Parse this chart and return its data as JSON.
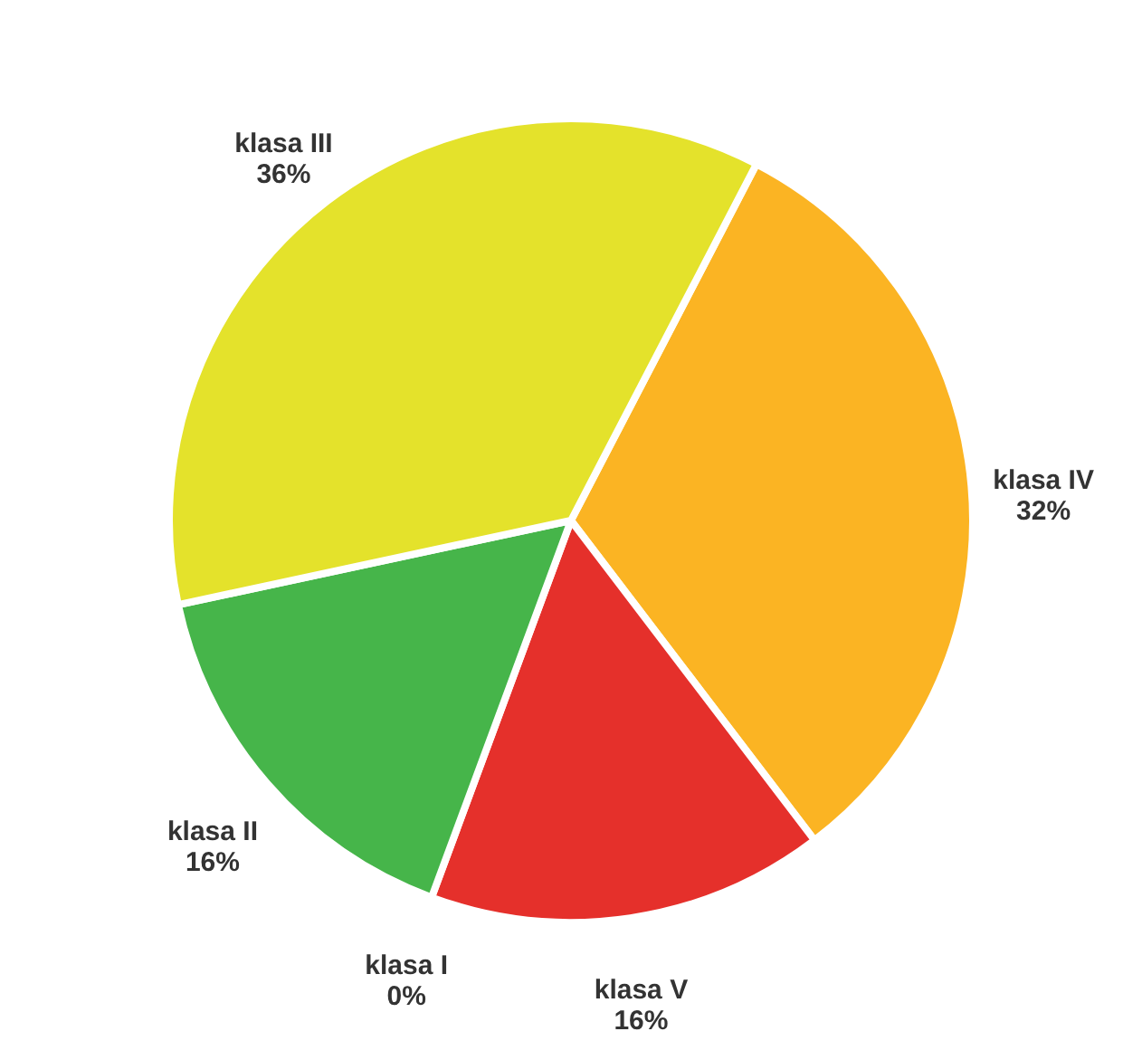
{
  "chart_data": {
    "type": "pie",
    "categories": [
      "klasa IV",
      "klasa V",
      "klasa I",
      "klasa II",
      "klasa III"
    ],
    "values": [
      32,
      16,
      0,
      16,
      36
    ],
    "value_labels": [
      "32%",
      "16%",
      "0%",
      "16%",
      "36%"
    ],
    "colors": [
      "#fbb423",
      "#e5302b",
      "#2e8b3e",
      "#46b54a",
      "#e4e22b"
    ]
  }
}
